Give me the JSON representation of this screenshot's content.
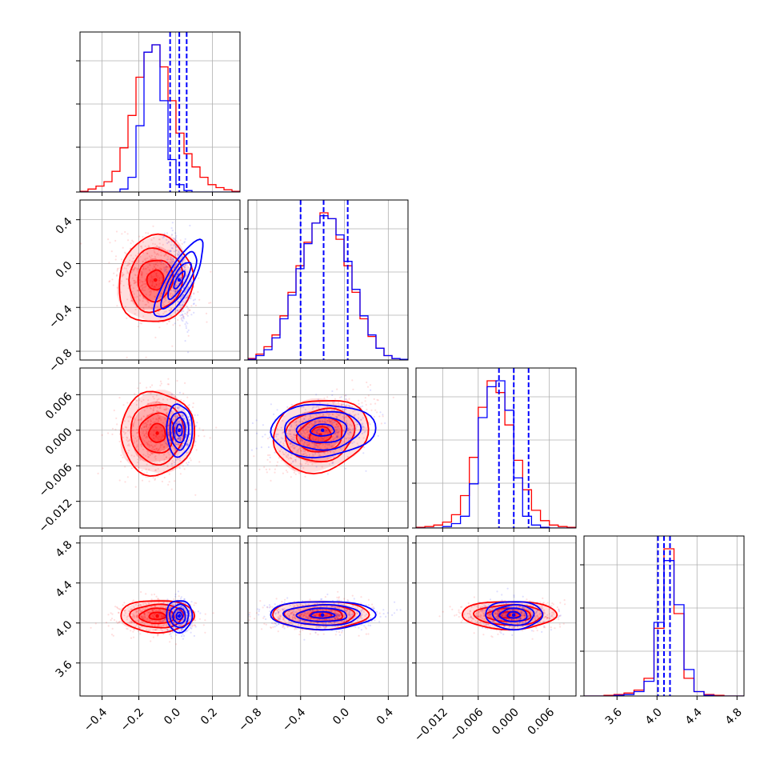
{
  "colors": {
    "red_series": "#ff0000",
    "blue_series": "#0000ff",
    "grid": "#b0b0b0"
  },
  "chart_data": {
    "type": "corner",
    "grid": true,
    "legend": "none",
    "parameters": [
      {
        "range": [
          -0.52,
          0.35
        ],
        "ticks": [
          -0.4,
          -0.2,
          0.0,
          0.2
        ],
        "tick_labels": [
          "−0.4",
          "−0.2",
          "0.0",
          "0.2"
        ]
      },
      {
        "range": [
          -0.88,
          0.58
        ],
        "ticks": [
          -0.8,
          -0.4,
          0.0,
          0.4
        ],
        "tick_labels": [
          "−0.8",
          "−0.4",
          "0.0",
          "0.4"
        ]
      },
      {
        "range": [
          -0.0165,
          0.0105
        ],
        "ticks": [
          -0.012,
          -0.006,
          0.0,
          0.006
        ],
        "tick_labels": [
          "−0.012",
          "−0.006",
          "0.000",
          "0.006"
        ]
      },
      {
        "range": [
          3.27,
          4.87
        ],
        "ticks": [
          3.6,
          4.0,
          4.4,
          4.8
        ],
        "tick_labels": [
          "3.6",
          "4.0",
          "4.4",
          "4.8"
        ]
      }
    ],
    "series": [
      {
        "key": "red",
        "histograms": [
          [
            0.005,
            0.02,
            0.04,
            0.07,
            0.14,
            0.3,
            0.52,
            0.78,
            0.95,
            1.0,
            0.85,
            0.62,
            0.4,
            0.26,
            0.17,
            0.1,
            0.05,
            0.03,
            0.015,
            0.005
          ],
          [
            0.01,
            0.04,
            0.09,
            0.17,
            0.3,
            0.46,
            0.64,
            0.8,
            0.93,
            1.0,
            0.96,
            0.82,
            0.64,
            0.46,
            0.28,
            0.16,
            0.08,
            0.03,
            0.01,
            0.005
          ],
          [
            0.005,
            0.01,
            0.02,
            0.04,
            0.09,
            0.22,
            0.48,
            0.82,
            1.0,
            0.92,
            0.7,
            0.46,
            0.26,
            0.12,
            0.05,
            0.02,
            0.01,
            0.005
          ],
          [
            0.0,
            0.0,
            0.005,
            0.01,
            0.02,
            0.04,
            0.12,
            0.46,
            1.0,
            0.56,
            0.12,
            0.03,
            0.01,
            0.005,
            0.0,
            0.0
          ]
        ],
        "cloud": [
          {
            "pair": [
              0,
              1
            ],
            "center": [
              -0.11,
              -0.15
            ],
            "sd": [
              0.1,
              0.2
            ],
            "rho": -0.3
          },
          {
            "pair": [
              0,
              2
            ],
            "center": [
              -0.1,
              -0.0005
            ],
            "sd": [
              0.1,
              0.0035
            ],
            "rho": -0.05
          },
          {
            "pair": [
              0,
              3
            ],
            "center": [
              -0.1,
              4.07
            ],
            "sd": [
              0.1,
              0.08
            ],
            "rho": 0.0
          },
          {
            "pair": [
              1,
              2
            ],
            "center": [
              -0.22,
              -0.0008
            ],
            "sd": [
              0.22,
              0.003
            ],
            "rho": 0.65
          },
          {
            "pair": [
              1,
              3
            ],
            "center": [
              -0.22,
              4.08
            ],
            "sd": [
              0.22,
              0.07
            ],
            "rho": 0.0
          },
          {
            "pair": [
              2,
              3
            ],
            "center": [
              -0.0008,
              4.08
            ],
            "sd": [
              0.004,
              0.07
            ],
            "rho": 0.0
          }
        ]
      },
      {
        "key": "blue",
        "histograms": [
          [
            0.0,
            0.0,
            0.0,
            0.0,
            0.0,
            0.02,
            0.1,
            0.45,
            0.95,
            1.0,
            0.62,
            0.22,
            0.05,
            0.01,
            0.0,
            0.0,
            0.0,
            0.0,
            0.0,
            0.0
          ],
          [
            0.005,
            0.03,
            0.07,
            0.15,
            0.28,
            0.44,
            0.62,
            0.79,
            0.93,
            0.98,
            0.96,
            0.85,
            0.67,
            0.48,
            0.3,
            0.17,
            0.08,
            0.03,
            0.01,
            0.005
          ],
          [
            0.0,
            0.0,
            0.0,
            0.01,
            0.03,
            0.08,
            0.3,
            0.75,
            0.96,
            1.0,
            0.8,
            0.34,
            0.08,
            0.02,
            0.005,
            0.0,
            0.0,
            0.0
          ],
          [
            0.0,
            0.0,
            0.0,
            0.005,
            0.01,
            0.03,
            0.1,
            0.5,
            0.92,
            0.62,
            0.18,
            0.03,
            0.005,
            0.0,
            0.0,
            0.0
          ]
        ],
        "quantile_lines": [
          [
            -0.03,
            0.02,
            0.06
          ],
          [
            -0.4,
            -0.19,
            0.03
          ],
          [
            -0.0025,
            0.0,
            0.0025
          ],
          [
            4.01,
            4.07,
            4.13
          ]
        ],
        "cloud": [
          {
            "pair": [
              0,
              1
            ],
            "center": [
              0.02,
              -0.15
            ],
            "sd": [
              0.035,
              0.2
            ],
            "rho": -0.4
          },
          {
            "pair": [
              0,
              2
            ],
            "center": [
              0.02,
              0.0
            ],
            "sd": [
              0.035,
              0.0022
            ],
            "rho": 0.0
          },
          {
            "pair": [
              0,
              3
            ],
            "center": [
              0.02,
              4.07
            ],
            "sd": [
              0.035,
              0.08
            ],
            "rho": 0.0
          },
          {
            "pair": [
              1,
              2
            ],
            "center": [
              -0.2,
              0.0
            ],
            "sd": [
              0.24,
              0.0022
            ],
            "rho": 0.15
          },
          {
            "pair": [
              1,
              3
            ],
            "center": [
              -0.2,
              4.08
            ],
            "sd": [
              0.24,
              0.07
            ],
            "rho": 0.0
          },
          {
            "pair": [
              2,
              3
            ],
            "center": [
              0.0,
              4.08
            ],
            "sd": [
              0.0024,
              0.07
            ],
            "rho": 0.0
          }
        ]
      }
    ]
  }
}
